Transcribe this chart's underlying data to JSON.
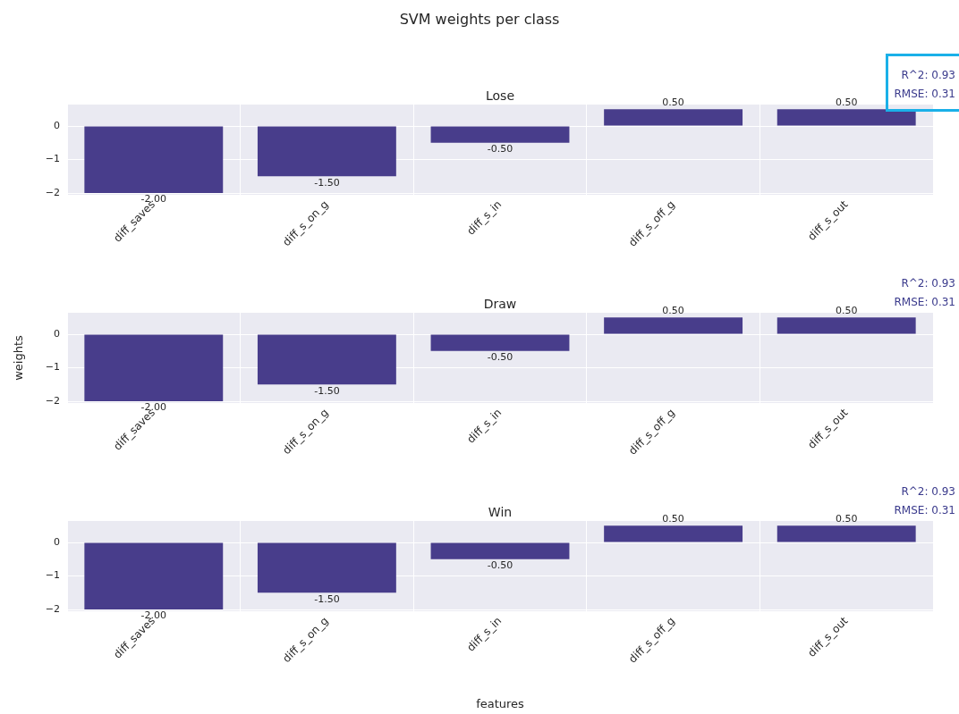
{
  "chart_data": [
    {
      "type": "bar",
      "title": "SVM weights per class",
      "subtitle": "Lose",
      "categories": [
        "diff_saves",
        "diff_s_on_g",
        "diff_s_in",
        "diff_s_off_g",
        "diff_s_out"
      ],
      "values": [
        -2,
        -1.5,
        -0.5,
        0.5,
        0.5
      ],
      "value_labels": [
        "-2.00",
        "-1.50",
        "-0.50",
        "0.50",
        "0.50"
      ],
      "color": "#483d8b",
      "ylim": [
        -2.05,
        0.64
      ],
      "yticks": [
        -2,
        -1,
        0
      ],
      "grid": true,
      "annotations": [
        "R^2: 0.93",
        "RMSE: 0.31"
      ]
    },
    {
      "type": "bar",
      "title": "Draw",
      "ylabel": "weights",
      "categories": [
        "diff_saves",
        "diff_s_on_g",
        "diff_s_in",
        "diff_s_off_g",
        "diff_s_out"
      ],
      "values": [
        -2,
        -1.5,
        -0.5,
        0.5,
        0.5
      ],
      "value_labels": [
        "-2.00",
        "-1.50",
        "-0.50",
        "0.50",
        "0.50"
      ],
      "color": "#483d8b",
      "ylim": [
        -2.05,
        0.64
      ],
      "yticks": [
        -2,
        -1,
        0
      ],
      "grid": true,
      "annotations": [
        "R^2: 0.93",
        "RMSE: 0.31"
      ]
    },
    {
      "type": "bar",
      "title": "Win",
      "xlabel": "features",
      "categories": [
        "diff_saves",
        "diff_s_on_g",
        "diff_s_in",
        "diff_s_off_g",
        "diff_s_out"
      ],
      "values": [
        -2,
        -1.5,
        -0.5,
        0.5,
        0.5
      ],
      "value_labels": [
        "-2.00",
        "-1.50",
        "-0.50",
        "0.50",
        "0.50"
      ],
      "color": "#483d8b",
      "ylim": [
        -2.05,
        0.64
      ],
      "yticks": [
        -2,
        -1,
        0
      ],
      "grid": true,
      "annotations": [
        "R^2: 0.93",
        "RMSE: 0.31"
      ]
    }
  ]
}
